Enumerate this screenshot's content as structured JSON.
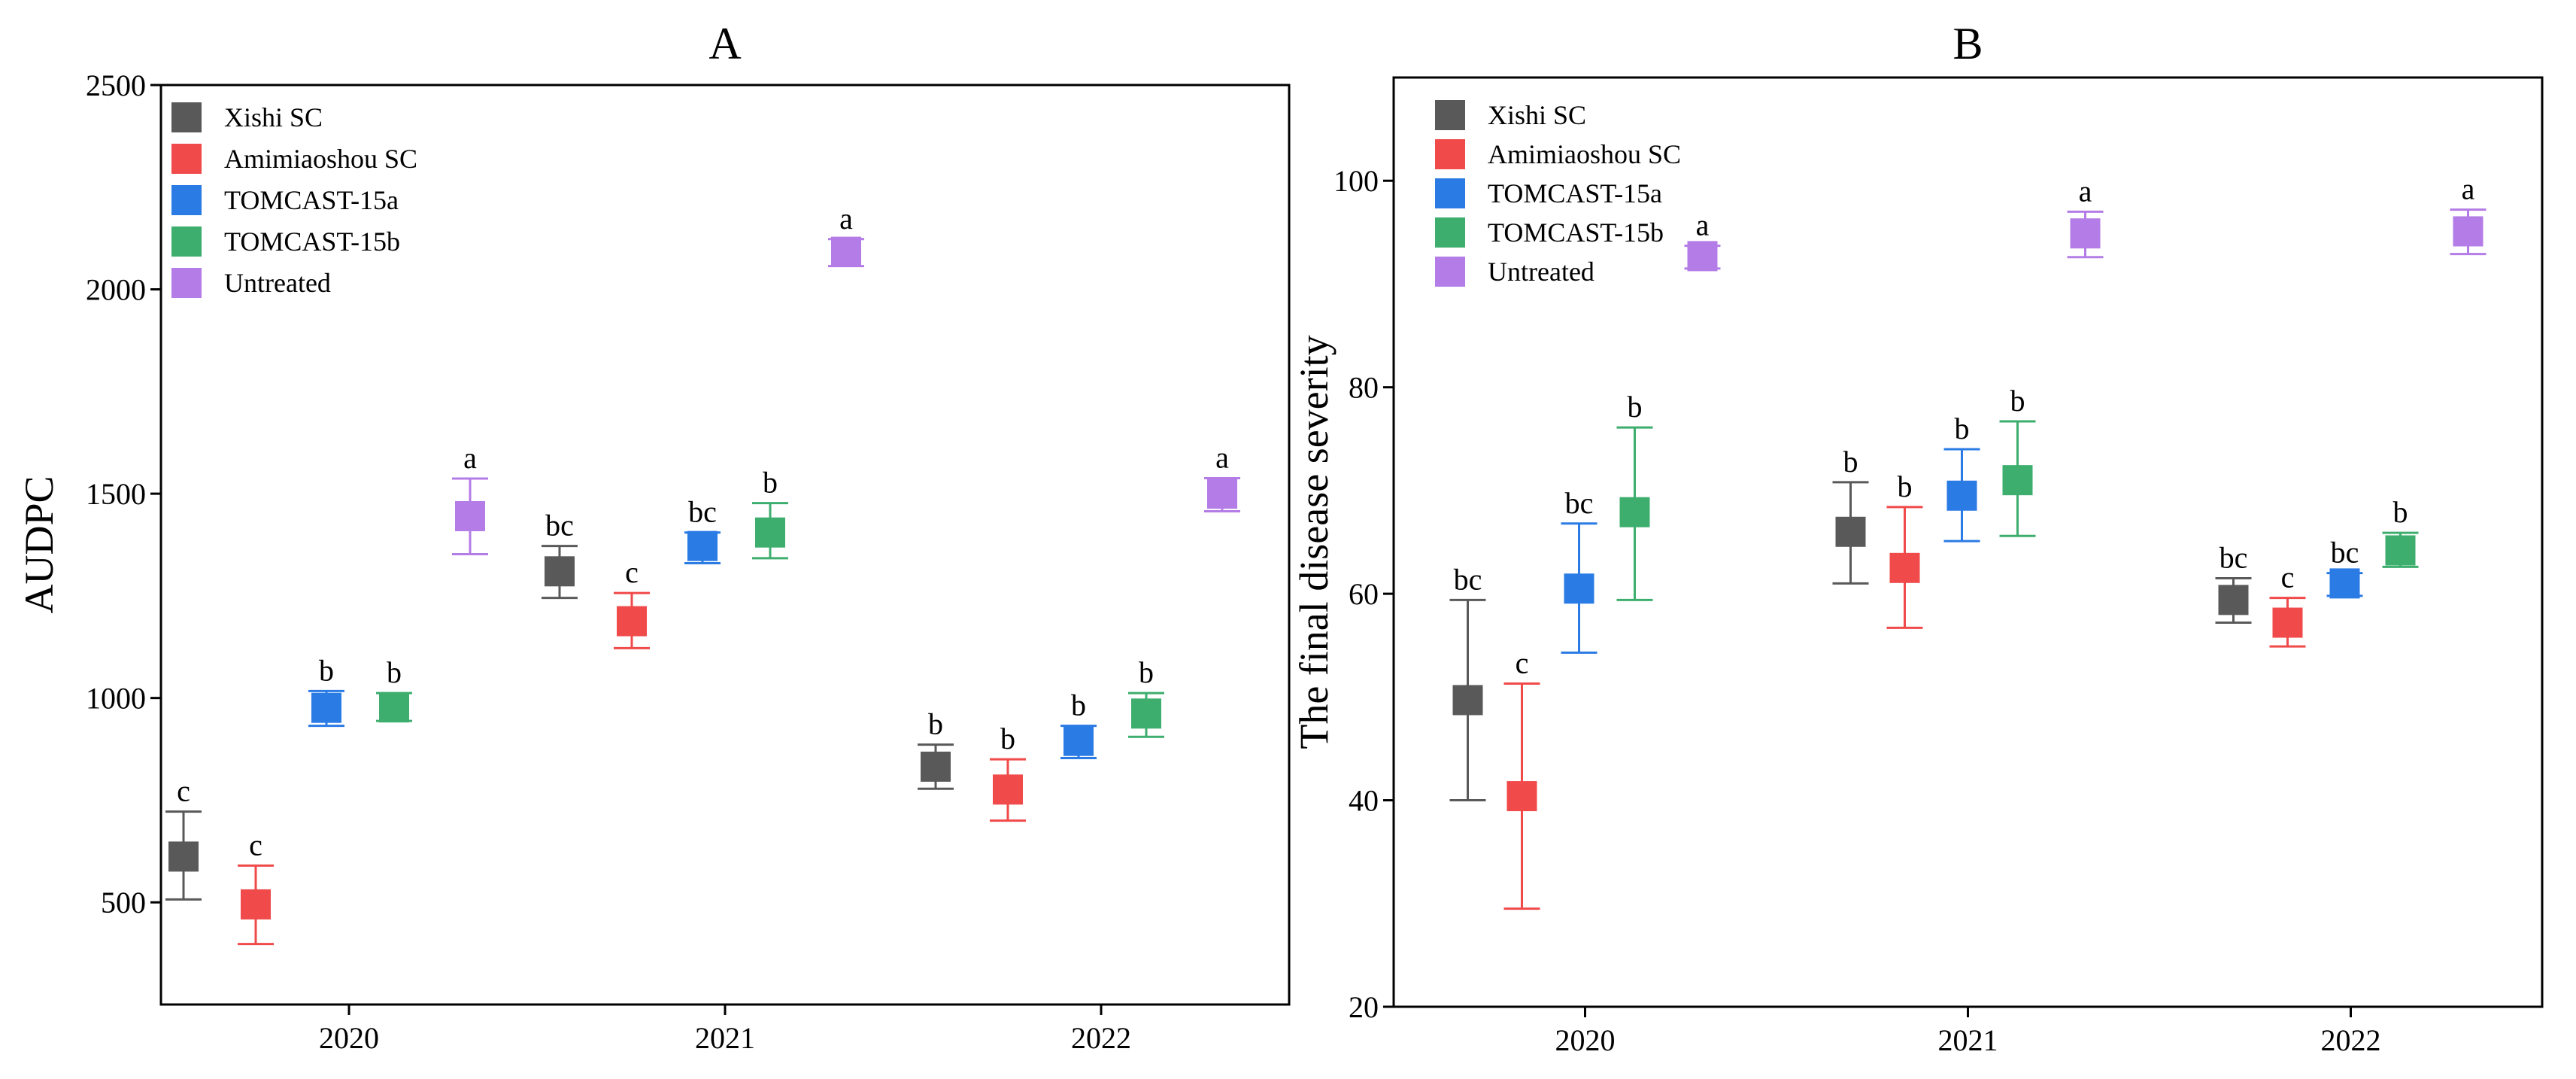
{
  "chart_data": [
    {
      "type": "scatter",
      "panel_title": "A",
      "ylabel": "AUDPC",
      "xlabel": "",
      "ylim": [
        250,
        2500
      ],
      "yticks": [
        500,
        1000,
        1500,
        2000,
        2500
      ],
      "categories": [
        "2020",
        "2021",
        "2022"
      ],
      "legend_position": "top-left",
      "series": [
        {
          "name": "Xishi SC",
          "color": "#595959",
          "values": [
            612,
            1310,
            832
          ],
          "err_low": [
            507,
            1245,
            778
          ],
          "err_high": [
            722,
            1372,
            886
          ],
          "labels": [
            "c",
            "bc",
            "b"
          ]
        },
        {
          "name": "Amimiaoshou SC",
          "color": "#f04a4a",
          "values": [
            495,
            1188,
            776
          ],
          "err_low": [
            398,
            1122,
            700
          ],
          "err_high": [
            590,
            1257,
            850
          ],
          "labels": [
            "c",
            "c",
            "b"
          ]
        },
        {
          "name": "TOMCAST-15a",
          "color": "#2b7be5",
          "values": [
            976,
            1372,
            895
          ],
          "err_low": [
            932,
            1330,
            853
          ],
          "err_high": [
            1017,
            1405,
            932
          ],
          "labels": [
            "b",
            "bc",
            "b"
          ]
        },
        {
          "name": "TOMCAST-15b",
          "color": "#3dae6e",
          "values": [
            977,
            1405,
            962
          ],
          "err_low": [
            944,
            1342,
            905
          ],
          "err_high": [
            1012,
            1477,
            1012
          ],
          "labels": [
            "b",
            "b",
            "b"
          ]
        },
        {
          "name": "Untreated",
          "color": "#b37ce6",
          "values": [
            1445,
            2092,
            1500
          ],
          "err_low": [
            1352,
            2057,
            1457
          ],
          "err_high": [
            1537,
            2123,
            1538
          ],
          "labels": [
            "a",
            "a",
            "a"
          ]
        }
      ]
    },
    {
      "type": "scatter",
      "panel_title": "B",
      "ylabel": "The final disease severity",
      "xlabel": "",
      "ylim": [
        20,
        110
      ],
      "yticks": [
        20,
        40,
        60,
        80,
        100
      ],
      "categories": [
        "2020",
        "2021",
        "2022"
      ],
      "legend_position": "top-left",
      "series": [
        {
          "name": "Xishi SC",
          "color": "#595959",
          "values": [
            49.7,
            66.0,
            59.4
          ],
          "err_low": [
            40.0,
            61.0,
            57.2
          ],
          "err_high": [
            59.4,
            70.8,
            61.5
          ],
          "labels": [
            "bc",
            "b",
            "bc"
          ]
        },
        {
          "name": "Amimiaoshou SC",
          "color": "#f04a4a",
          "values": [
            40.4,
            62.5,
            57.2
          ],
          "err_low": [
            29.5,
            56.7,
            54.9
          ],
          "err_high": [
            51.3,
            68.4,
            59.6
          ],
          "labels": [
            "c",
            "b",
            "c"
          ]
        },
        {
          "name": "TOMCAST-15a",
          "color": "#2b7be5",
          "values": [
            60.5,
            69.5,
            61.0
          ],
          "err_low": [
            54.3,
            65.1,
            59.8
          ],
          "err_high": [
            66.8,
            74.0,
            62.0
          ],
          "labels": [
            "bc",
            "b",
            "bc"
          ]
        },
        {
          "name": "TOMCAST-15b",
          "color": "#3dae6e",
          "values": [
            67.9,
            71.0,
            64.2
          ],
          "err_low": [
            59.4,
            65.6,
            62.6
          ],
          "err_high": [
            76.1,
            76.7,
            65.9
          ],
          "labels": [
            "b",
            "b",
            "b"
          ]
        },
        {
          "name": "Untreated",
          "color": "#b37ce6",
          "values": [
            92.7,
            94.9,
            95.1
          ],
          "err_low": [
            91.5,
            92.6,
            92.9
          ],
          "err_high": [
            93.7,
            97.0,
            97.2
          ],
          "labels": [
            "a",
            "a",
            "a"
          ]
        }
      ]
    }
  ]
}
